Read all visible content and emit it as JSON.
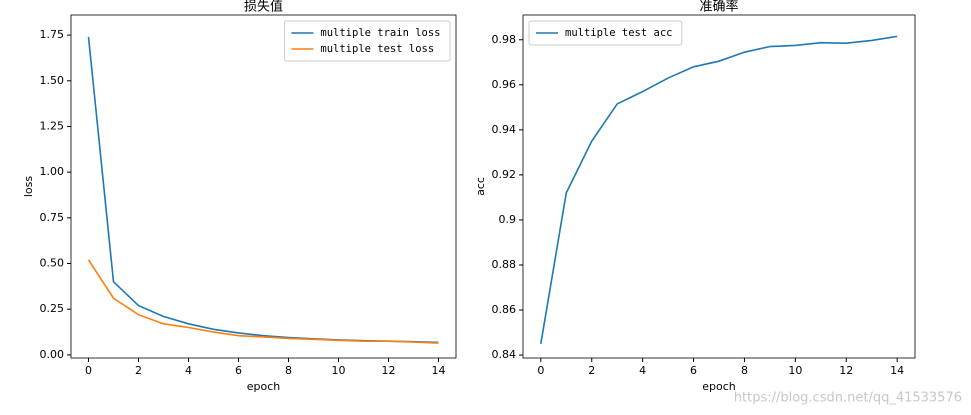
{
  "charts": [
    {
      "type": "line",
      "title": "损失值",
      "xlabel": "epoch",
      "ylabel": "loss",
      "x": [
        0,
        1,
        2,
        3,
        4,
        5,
        6,
        7,
        8,
        9,
        10,
        11,
        12,
        13,
        14
      ],
      "series": [
        {
          "name": "multiple train loss",
          "color": "#1f77b4",
          "values": [
            1.74,
            0.4,
            0.27,
            0.21,
            0.17,
            0.14,
            0.12,
            0.105,
            0.095,
            0.088,
            0.082,
            0.078,
            0.075,
            0.072,
            0.068
          ]
        },
        {
          "name": "multiple test loss",
          "color": "#ff7f0e",
          "values": [
            0.52,
            0.31,
            0.22,
            0.17,
            0.15,
            0.125,
            0.105,
            0.098,
            0.09,
            0.085,
            0.08,
            0.075,
            0.075,
            0.07,
            0.065
          ]
        }
      ],
      "xlim": [
        -0.7,
        14.7
      ],
      "xticks": [
        0,
        2,
        4,
        6,
        8,
        10,
        12,
        14
      ],
      "ylim": [
        -0.017,
        1.86
      ],
      "yticks": [
        {
          "value": 0,
          "label": "0.00"
        },
        0.25,
        {
          "value": 0.5,
          "label": "0.50"
        },
        0.75,
        {
          "value": 1,
          "label": "1.00"
        },
        1.25,
        {
          "value": 1.5,
          "label": "1.50"
        },
        1.75
      ],
      "legend": "upper right"
    },
    {
      "type": "line",
      "title": "准确率",
      "xlabel": "epoch",
      "ylabel": "acc",
      "x": [
        0,
        1,
        2,
        3,
        4,
        5,
        6,
        7,
        8,
        9,
        10,
        11,
        12,
        13,
        14
      ],
      "series": [
        {
          "name": "multiple test acc",
          "color": "#1f77b4",
          "values": [
            0.845,
            0.912,
            0.935,
            0.9515,
            0.957,
            0.963,
            0.968,
            0.9705,
            0.9745,
            0.977,
            0.9775,
            0.9787,
            0.9785,
            0.9797,
            0.9815
          ]
        }
      ],
      "xlim": [
        -0.7,
        14.7
      ],
      "xticks": [
        0,
        2,
        4,
        6,
        8,
        10,
        12,
        14
      ],
      "ylim": [
        0.8387,
        0.991
      ],
      "yticks": [
        0.84,
        0.86,
        0.88,
        0.9,
        0.92,
        0.94,
        0.96,
        0.98
      ],
      "legend": "upper left"
    }
  ],
  "watermark": "https://blog.csdn.net/qq_41533576"
}
